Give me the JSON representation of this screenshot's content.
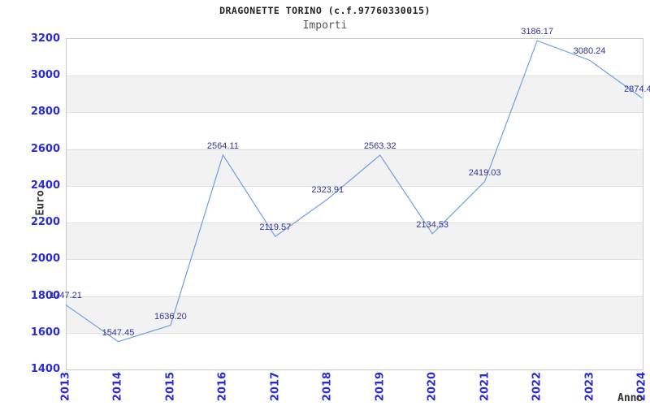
{
  "header": {
    "title": "DRAGONETTE TORINO (c.f.97760330015)",
    "subtitle": "Importi"
  },
  "chart_data": {
    "type": "line",
    "title": "DRAGONETTE TORINO (c.f.97760330015)",
    "subtitle": "Importi",
    "xlabel": "Anno",
    "ylabel": "Euro",
    "x": [
      2013,
      2014,
      2015,
      2016,
      2017,
      2018,
      2019,
      2020,
      2021,
      2022,
      2023,
      2024
    ],
    "series": [
      {
        "name": "Importi",
        "values": [
          1747.21,
          1547.45,
          1636.2,
          2564.11,
          2119.57,
          2323.91,
          2563.32,
          2134.53,
          2419.03,
          3186.17,
          3080.24,
          2874.4
        ]
      }
    ],
    "point_labels": [
      "1747.21",
      "1547.45",
      "1636.20",
      "2564.11",
      "2119.57",
      "2323.91",
      "2563.32",
      "2134.53",
      "2419.03",
      "3186.17",
      "3080.24",
      "2874.4"
    ],
    "ylim": [
      1400,
      3200
    ],
    "ytick_step": 200,
    "yticks": [
      "1400",
      "1600",
      "1800",
      "2000",
      "2200",
      "2400",
      "2600",
      "2800",
      "3000",
      "3200"
    ],
    "grid": "horizontal-alternating-bands",
    "legend": "none",
    "colors": {
      "line": "#6f9fe0",
      "tick_label": "#2b2bd2",
      "point_label": "#333399",
      "band": "#f2f2f2",
      "grid_line": "#e0e0e0",
      "plot_border": "#c9c9c9",
      "title": "#222222",
      "subtitle": "#555555",
      "axis_title": "#333333"
    }
  }
}
